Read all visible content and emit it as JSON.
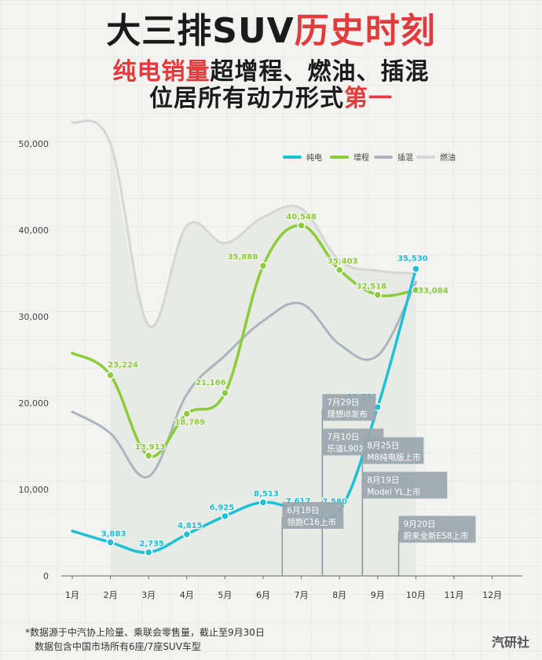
{
  "header": {
    "line1_dark": "大三排SUV",
    "line1_red": "历史时刻",
    "line2_red": "纯电销量",
    "line2_dark": "超增程、燃油、插混",
    "line3_dark": "位居所有动力形式",
    "line3_red": "第一"
  },
  "footnote": {
    "line1": "*数据源于中汽协上险量、乘联会零售量，截止至9月30日",
    "line2": "数据包含中国市场所有6座/7座SUV车型"
  },
  "watermark": "汽研社",
  "colors": {
    "ev": "#1ec0d6",
    "erev": "#8ccc3a",
    "phev": "#aab5bf",
    "ice": "#d6d6d6",
    "headline_red": "#e23b3b",
    "annotation_bg": "#9aa6ae"
  },
  "chart_data": {
    "type": "line",
    "categories": [
      "1月",
      "2月",
      "3月",
      "4月",
      "5月",
      "6月",
      "7月",
      "8月",
      "9月",
      "10月",
      "11月",
      "12月"
    ],
    "ylim": [
      0,
      52000
    ],
    "yticks": [
      0,
      10000,
      20000,
      30000,
      40000,
      50000
    ],
    "ytick_labels": [
      "0",
      "10,000",
      "20,000",
      "30,000",
      "40,000",
      "50,000"
    ],
    "legend_position": "top-right",
    "series": [
      {
        "key": "ev",
        "name": "纯电",
        "values": [
          5200,
          3883,
          2735,
          4815,
          6925,
          8513,
          7617,
          7580,
          19531,
          35530,
          null,
          null
        ],
        "labels": [
          "",
          "3,883",
          "2,735",
          "4,815",
          "6,925",
          "8,513",
          "7,617",
          "7,580",
          "19,531",
          "35,530",
          "",
          ""
        ]
      },
      {
        "key": "erev",
        "name": "增程",
        "values": [
          25800,
          23224,
          13913,
          18769,
          21166,
          35888,
          40548,
          35403,
          32518,
          33084,
          null,
          null
        ],
        "labels": [
          "",
          "23,224",
          "13,913",
          "18,769",
          "21,166",
          "35,888",
          "40,548",
          "35,403",
          "32,518",
          "33,084",
          "",
          ""
        ]
      },
      {
        "key": "phev",
        "name": "插混",
        "values": [
          19000,
          16500,
          11500,
          21000,
          25500,
          29500,
          31500,
          26800,
          25500,
          34000,
          null,
          null
        ]
      },
      {
        "key": "ice",
        "name": "燃油",
        "values": [
          52500,
          50000,
          29000,
          40500,
          38500,
          41500,
          42500,
          36500,
          35300,
          35000,
          null,
          null
        ]
      }
    ],
    "annotations": [
      {
        "month_index": 5.5,
        "y": 7000,
        "lines": [
          "6月18日",
          "领跑C16上市"
        ]
      },
      {
        "month_index": 6.55,
        "y": 19500,
        "lines": [
          "7月29日",
          "理想i8发布"
        ]
      },
      {
        "month_index": 6.55,
        "y": 15500,
        "lines": [
          "7月10日",
          "乐道L90发布"
        ]
      },
      {
        "month_index": 7.6,
        "y": 14500,
        "lines": [
          "8月25日",
          "M8纯电版上市"
        ]
      },
      {
        "month_index": 7.6,
        "y": 10500,
        "lines": [
          "8月19日",
          "Model YL上市"
        ]
      },
      {
        "month_index": 8.55,
        "y": 5400,
        "lines": [
          "9月20日",
          "蔚来全新ES8上市"
        ]
      }
    ]
  }
}
